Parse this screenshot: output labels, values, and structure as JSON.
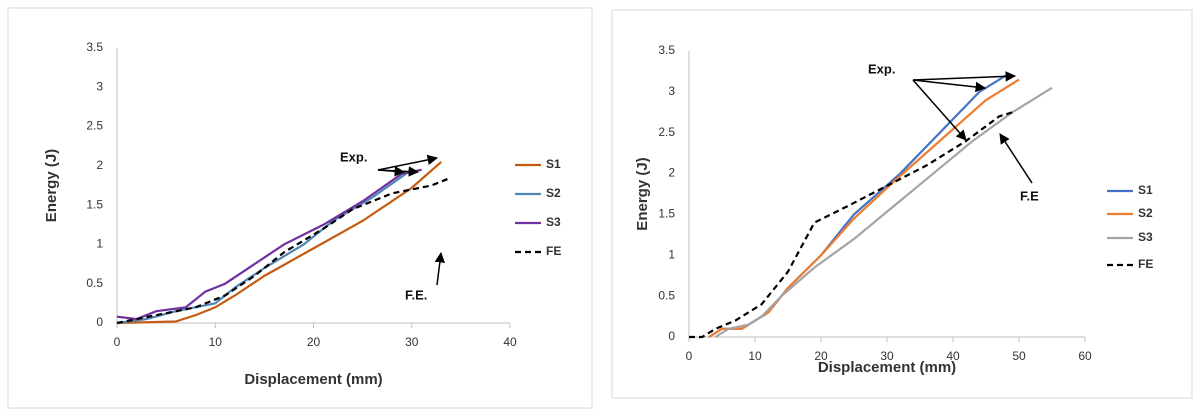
{
  "chart_data": [
    {
      "type": "line",
      "xlabel": "Displacement (mm)",
      "ylabel": "Energy (J)",
      "xlim": [
        0,
        40
      ],
      "xticks": [
        0,
        10,
        20,
        30,
        40
      ],
      "ylim": [
        0,
        3.5
      ],
      "yticks": [
        0,
        0.5,
        1,
        1.5,
        2,
        2.5,
        3,
        3.5
      ],
      "annotations": [
        "Exp.",
        "F.E."
      ],
      "series": [
        {
          "name": "S1",
          "color": "#c55a11",
          "dash": false,
          "x": [
            0,
            6,
            8,
            9,
            10,
            12,
            15,
            20,
            25,
            30,
            33
          ],
          "values": [
            0,
            0.02,
            0.1,
            0.15,
            0.2,
            0.35,
            0.6,
            0.95,
            1.3,
            1.72,
            2.05
          ]
        },
        {
          "name": "S2",
          "color": "#4f86b4",
          "dash": false,
          "x": [
            0,
            3,
            6,
            10,
            12,
            15,
            19,
            22,
            26,
            30
          ],
          "values": [
            0,
            0.05,
            0.15,
            0.25,
            0.45,
            0.7,
            1.0,
            1.3,
            1.6,
            1.95
          ]
        },
        {
          "name": "S3",
          "color": "#7030a0",
          "dash": false,
          "x": [
            0,
            2,
            4,
            7,
            9,
            11,
            14,
            17,
            21,
            25,
            29,
            31
          ],
          "values": [
            0.08,
            0.05,
            0.15,
            0.2,
            0.4,
            0.5,
            0.75,
            1.0,
            1.25,
            1.55,
            1.9,
            1.95
          ]
        },
        {
          "name": "FE",
          "color": "#000000",
          "dash": true,
          "x": [
            0,
            4,
            8,
            11,
            14,
            17,
            21,
            24,
            28,
            32,
            34
          ],
          "values": [
            0,
            0.1,
            0.2,
            0.35,
            0.6,
            0.9,
            1.2,
            1.45,
            1.65,
            1.75,
            1.85
          ]
        }
      ]
    },
    {
      "type": "line",
      "xlabel": "Displacement (mm)",
      "ylabel": "Energy (J)",
      "xlim": [
        0,
        60
      ],
      "xticks": [
        0,
        10,
        20,
        30,
        40,
        50,
        60
      ],
      "ylim": [
        0,
        3.5
      ],
      "yticks": [
        0,
        0.5,
        1,
        1.5,
        2,
        2.5,
        3,
        3.5
      ],
      "annotations": [
        "Exp.",
        "F.E"
      ],
      "series": [
        {
          "name": "S1",
          "color": "#4472c4",
          "dash": false,
          "x": [
            3,
            5,
            8,
            10,
            12,
            15,
            20,
            25,
            32,
            38,
            44,
            48
          ],
          "values": [
            0,
            0.1,
            0.1,
            0.2,
            0.3,
            0.6,
            1.0,
            1.5,
            2.0,
            2.5,
            3.0,
            3.2
          ]
        },
        {
          "name": "S2",
          "color": "#ed7d31",
          "dash": false,
          "x": [
            3,
            5,
            8,
            10,
            12,
            15,
            20,
            25,
            31,
            38,
            45,
            50
          ],
          "values": [
            0,
            0.1,
            0.1,
            0.2,
            0.3,
            0.6,
            1.0,
            1.45,
            1.9,
            2.4,
            2.9,
            3.15
          ]
        },
        {
          "name": "S3",
          "color": "#a5a5a5",
          "dash": false,
          "x": [
            4,
            6,
            9,
            11,
            14,
            19,
            25,
            31,
            37,
            43,
            49,
            55
          ],
          "values": [
            0,
            0.1,
            0.15,
            0.25,
            0.5,
            0.85,
            1.2,
            1.6,
            2.0,
            2.4,
            2.75,
            3.05
          ]
        },
        {
          "name": "FE",
          "color": "#000000",
          "dash": true,
          "x": [
            0,
            2,
            4,
            7,
            11,
            15,
            19,
            24,
            30,
            36,
            42,
            47,
            49
          ],
          "values": [
            0,
            0,
            0.1,
            0.2,
            0.4,
            0.8,
            1.4,
            1.6,
            1.85,
            2.1,
            2.4,
            2.7,
            2.75
          ]
        }
      ]
    }
  ]
}
